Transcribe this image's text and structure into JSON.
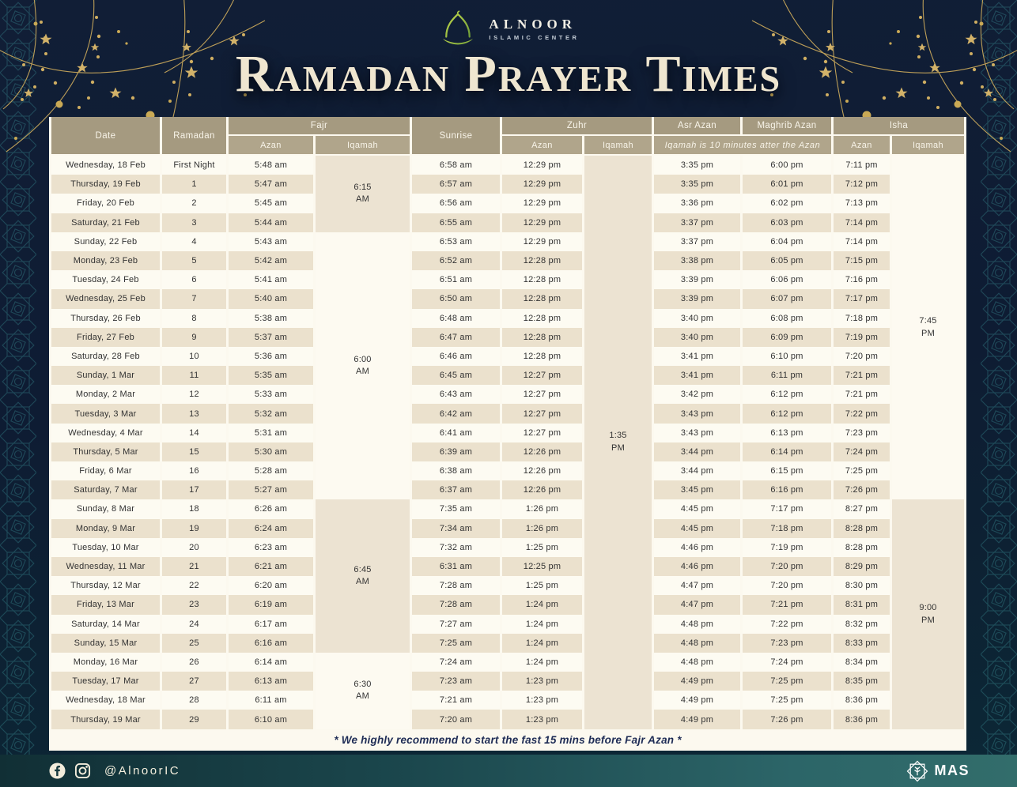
{
  "brand": {
    "name": "ALNOOR",
    "tagline": "ISLAMIC CENTER"
  },
  "title": "Ramadan Prayer Times",
  "colors": {
    "background_navy": "#0e1c33",
    "header_tan": "#a59a80",
    "subheader_tan": "#b0a58b",
    "row_beige": "#ebe1cd",
    "row_cream": "#fdfbf2",
    "gold_decor": "#d2b269",
    "footer_teal": "#2c6568",
    "note_navy": "#1e2c55",
    "logo_green": "#9dbf3e"
  },
  "table": {
    "groups": {
      "fajr": "Fajr",
      "zuhr": "Zuhr",
      "isha": "Isha"
    },
    "headers": {
      "date": "Date",
      "ramadan": "Ramadan",
      "sunrise": "Sunrise",
      "azan": "Azan",
      "iqamah": "Iqamah",
      "asr_azan": "Asr Azan",
      "maghrib_azan": "Maghrib Azan",
      "iqamah_note": "Iqamah is 10 minutes atter the Azan"
    },
    "rows": [
      {
        "date": "Wednesday, 18 Feb",
        "ramadan": "First Night",
        "fajr_azan": "5:48 am",
        "sunrise": "6:58 am",
        "zuhr_azan": "12:29 pm",
        "asr_azan": "3:35 pm",
        "maghrib_azan": "6:00 pm",
        "isha_azan": "7:11 pm"
      },
      {
        "date": "Thursday, 19 Feb",
        "ramadan": "1",
        "fajr_azan": "5:47 am",
        "sunrise": "6:57 am",
        "zuhr_azan": "12:29 pm",
        "asr_azan": "3:35 pm",
        "maghrib_azan": "6:01 pm",
        "isha_azan": "7:12 pm"
      },
      {
        "date": "Friday, 20 Feb",
        "ramadan": "2",
        "fajr_azan": "5:45 am",
        "sunrise": "6:56 am",
        "zuhr_azan": "12:29 pm",
        "asr_azan": "3:36 pm",
        "maghrib_azan": "6:02 pm",
        "isha_azan": "7:13 pm"
      },
      {
        "date": "Saturday, 21 Feb",
        "ramadan": "3",
        "fajr_azan": "5:44 am",
        "sunrise": "6:55 am",
        "zuhr_azan": "12:29 pm",
        "asr_azan": "3:37 pm",
        "maghrib_azan": "6:03 pm",
        "isha_azan": "7:14 pm"
      },
      {
        "date": "Sunday, 22 Feb",
        "ramadan": "4",
        "fajr_azan": "5:43 am",
        "sunrise": "6:53 am",
        "zuhr_azan": "12:29 pm",
        "asr_azan": "3:37 pm",
        "maghrib_azan": "6:04 pm",
        "isha_azan": "7:14 pm"
      },
      {
        "date": "Monday, 23 Feb",
        "ramadan": "5",
        "fajr_azan": "5:42 am",
        "sunrise": "6:52 am",
        "zuhr_azan": "12:28 pm",
        "asr_azan": "3:38 pm",
        "maghrib_azan": "6:05 pm",
        "isha_azan": "7:15 pm"
      },
      {
        "date": "Tuesday, 24 Feb",
        "ramadan": "6",
        "fajr_azan": "5:41 am",
        "sunrise": "6:51 am",
        "zuhr_azan": "12:28 pm",
        "asr_azan": "3:39 pm",
        "maghrib_azan": "6:06 pm",
        "isha_azan": "7:16 pm"
      },
      {
        "date": "Wednesday, 25 Feb",
        "ramadan": "7",
        "fajr_azan": "5:40 am",
        "sunrise": "6:50 am",
        "zuhr_azan": "12:28 pm",
        "asr_azan": "3:39 pm",
        "maghrib_azan": "6:07 pm",
        "isha_azan": "7:17 pm"
      },
      {
        "date": "Thursday, 26 Feb",
        "ramadan": "8",
        "fajr_azan": "5:38 am",
        "sunrise": "6:48 am",
        "zuhr_azan": "12:28 pm",
        "asr_azan": "3:40 pm",
        "maghrib_azan": "6:08 pm",
        "isha_azan": "7:18 pm"
      },
      {
        "date": "Friday, 27 Feb",
        "ramadan": "9",
        "fajr_azan": "5:37 am",
        "sunrise": "6:47 am",
        "zuhr_azan": "12:28 pm",
        "asr_azan": "3:40 pm",
        "maghrib_azan": "6:09 pm",
        "isha_azan": "7:19 pm"
      },
      {
        "date": "Saturday, 28 Feb",
        "ramadan": "10",
        "fajr_azan": "5:36 am",
        "sunrise": "6:46 am",
        "zuhr_azan": "12:28 pm",
        "asr_azan": "3:41 pm",
        "maghrib_azan": "6:10 pm",
        "isha_azan": "7:20 pm"
      },
      {
        "date": "Sunday, 1 Mar",
        "ramadan": "11",
        "fajr_azan": "5:35 am",
        "sunrise": "6:45 am",
        "zuhr_azan": "12:27 pm",
        "asr_azan": "3:41 pm",
        "maghrib_azan": "6:11 pm",
        "isha_azan": "7:21 pm"
      },
      {
        "date": "Monday, 2 Mar",
        "ramadan": "12",
        "fajr_azan": "5:33 am",
        "sunrise": "6:43 am",
        "zuhr_azan": "12:27 pm",
        "asr_azan": "3:42 pm",
        "maghrib_azan": "6:12 pm",
        "isha_azan": "7:21 pm"
      },
      {
        "date": "Tuesday, 3 Mar",
        "ramadan": "13",
        "fajr_azan": "5:32 am",
        "sunrise": "6:42 am",
        "zuhr_azan": "12:27 pm",
        "asr_azan": "3:43 pm",
        "maghrib_azan": "6:12 pm",
        "isha_azan": "7:22 pm"
      },
      {
        "date": "Wednesday, 4 Mar",
        "ramadan": "14",
        "fajr_azan": "5:31 am",
        "sunrise": "6:41 am",
        "zuhr_azan": "12:27 pm",
        "asr_azan": "3:43 pm",
        "maghrib_azan": "6:13 pm",
        "isha_azan": "7:23 pm"
      },
      {
        "date": "Thursday, 5 Mar",
        "ramadan": "15",
        "fajr_azan": "5:30 am",
        "sunrise": "6:39 am",
        "zuhr_azan": "12:26 pm",
        "asr_azan": "3:44 pm",
        "maghrib_azan": "6:14 pm",
        "isha_azan": "7:24 pm"
      },
      {
        "date": "Friday, 6 Mar",
        "ramadan": "16",
        "fajr_azan": "5:28 am",
        "sunrise": "6:38 am",
        "zuhr_azan": "12:26 pm",
        "asr_azan": "3:44 pm",
        "maghrib_azan": "6:15 pm",
        "isha_azan": "7:25 pm"
      },
      {
        "date": "Saturday, 7 Mar",
        "ramadan": "17",
        "fajr_azan": "5:27 am",
        "sunrise": "6:37 am",
        "zuhr_azan": "12:26 pm",
        "asr_azan": "3:45 pm",
        "maghrib_azan": "6:16 pm",
        "isha_azan": "7:26 pm"
      },
      {
        "date": "Sunday, 8 Mar",
        "ramadan": "18",
        "fajr_azan": "6:26 am",
        "sunrise": "7:35 am",
        "zuhr_azan": "1:26 pm",
        "asr_azan": "4:45 pm",
        "maghrib_azan": "7:17 pm",
        "isha_azan": "8:27 pm"
      },
      {
        "date": "Monday, 9 Mar",
        "ramadan": "19",
        "fajr_azan": "6:24 am",
        "sunrise": "7:34 am",
        "zuhr_azan": "1:26 pm",
        "asr_azan": "4:45 pm",
        "maghrib_azan": "7:18 pm",
        "isha_azan": "8:28 pm"
      },
      {
        "date": "Tuesday, 10 Mar",
        "ramadan": "20",
        "fajr_azan": "6:23 am",
        "sunrise": "7:32 am",
        "zuhr_azan": "1:25 pm",
        "asr_azan": "4:46 pm",
        "maghrib_azan": "7:19 pm",
        "isha_azan": "8:28 pm"
      },
      {
        "date": "Wednesday, 11 Mar",
        "ramadan": "21",
        "fajr_azan": "6:21 am",
        "sunrise": "6:31 am",
        "zuhr_azan": "12:25 pm",
        "asr_azan": "4:46 pm",
        "maghrib_azan": "7:20 pm",
        "isha_azan": "8:29 pm"
      },
      {
        "date": "Thursday, 12 Mar",
        "ramadan": "22",
        "fajr_azan": "6:20 am",
        "sunrise": "7:28 am",
        "zuhr_azan": "1:25 pm",
        "asr_azan": "4:47 pm",
        "maghrib_azan": "7:20 pm",
        "isha_azan": "8:30 pm"
      },
      {
        "date": "Friday, 13 Mar",
        "ramadan": "23",
        "fajr_azan": "6:19 am",
        "sunrise": "7:28 am",
        "zuhr_azan": "1:24 pm",
        "asr_azan": "4:47 pm",
        "maghrib_azan": "7:21 pm",
        "isha_azan": "8:31 pm"
      },
      {
        "date": "Saturday, 14 Mar",
        "ramadan": "24",
        "fajr_azan": "6:17 am",
        "sunrise": "7:27 am",
        "zuhr_azan": "1:24 pm",
        "asr_azan": "4:48 pm",
        "maghrib_azan": "7:22 pm",
        "isha_azan": "8:32 pm"
      },
      {
        "date": "Sunday, 15 Mar",
        "ramadan": "25",
        "fajr_azan": "6:16 am",
        "sunrise": "7:25 am",
        "zuhr_azan": "1:24 pm",
        "asr_azan": "4:48 pm",
        "maghrib_azan": "7:23 pm",
        "isha_azan": "8:33 pm"
      },
      {
        "date": "Monday, 16 Mar",
        "ramadan": "26",
        "fajr_azan": "6:14 am",
        "sunrise": "7:24 am",
        "zuhr_azan": "1:24 pm",
        "asr_azan": "4:48 pm",
        "maghrib_azan": "7:24 pm",
        "isha_azan": "8:34 pm"
      },
      {
        "date": "Tuesday, 17 Mar",
        "ramadan": "27",
        "fajr_azan": "6:13 am",
        "sunrise": "7:23 am",
        "zuhr_azan": "1:23 pm",
        "asr_azan": "4:49 pm",
        "maghrib_azan": "7:25 pm",
        "isha_azan": "8:35 pm"
      },
      {
        "date": "Wednesday, 18 Mar",
        "ramadan": "28",
        "fajr_azan": "6:11 am",
        "sunrise": "7:21 am",
        "zuhr_azan": "1:23 pm",
        "asr_azan": "4:49 pm",
        "maghrib_azan": "7:25 pm",
        "isha_azan": "8:36 pm"
      },
      {
        "date": "Thursday, 19 Mar",
        "ramadan": "29",
        "fajr_azan": "6:10 am",
        "sunrise": "7:20 am",
        "zuhr_azan": "1:23 pm",
        "asr_azan": "4:49 pm",
        "maghrib_azan": "7:26 pm",
        "isha_azan": "8:36 pm"
      }
    ],
    "fajr_iqamah_spans": [
      {
        "label": "6:15\nAM",
        "rows": 4,
        "shade": "beige"
      },
      {
        "label": "6:00\nAM",
        "rows": 14,
        "shade": "white"
      },
      {
        "label": "6:45\nAM",
        "rows": 8,
        "shade": "beige"
      },
      {
        "label": "6:30\nAM",
        "rows": 4,
        "shade": "white"
      }
    ],
    "zuhr_iqamah_span": {
      "label": "1:35\nPM",
      "rows": 30,
      "shade": "beige"
    },
    "isha_iqamah_spans": [
      {
        "label": "7:45\nPM",
        "rows": 18,
        "shade": "white"
      },
      {
        "label": "9:00\nPM",
        "rows": 12,
        "shade": "beige"
      }
    ],
    "footnote": "* We highly recommend to start the fast 15 mins before Fajr Azan *"
  },
  "footer": {
    "social_handle": "@AlnoorIC",
    "mas_label": "MAS"
  }
}
